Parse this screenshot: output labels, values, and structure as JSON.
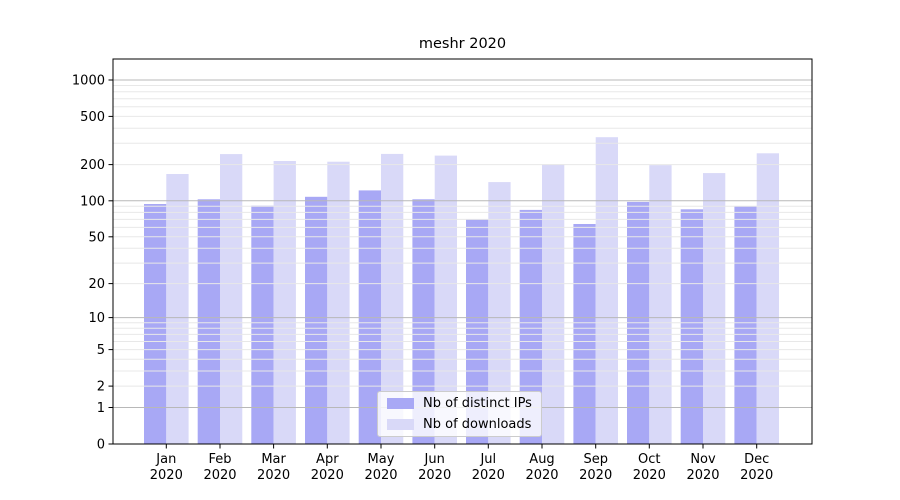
{
  "chart_data": {
    "type": "bar",
    "title": "meshr 2020",
    "categories": [
      "Jan",
      "Feb",
      "Mar",
      "Apr",
      "May",
      "Jun",
      "Jul",
      "Aug",
      "Sep",
      "Oct",
      "Nov",
      "Dec"
    ],
    "category_year": "2020",
    "series": [
      {
        "name": "Nb of distinct IPs",
        "color": "#a8a8f5",
        "values": [
          94,
          103,
          91,
          108,
          122,
          103,
          70,
          84,
          64,
          98,
          85,
          90
        ]
      },
      {
        "name": "Nb of downloads",
        "color": "#d9d9f8",
        "values": [
          167,
          244,
          214,
          211,
          245,
          237,
          143,
          201,
          337,
          198,
          170,
          248
        ]
      }
    ],
    "yscale": "log1p",
    "yticks": [
      1000,
      500,
      200,
      100,
      50,
      20,
      10,
      5,
      2,
      1,
      0
    ],
    "ylim": [
      0,
      1500
    ],
    "grid": true,
    "legend_position": "lower-center",
    "colors": {
      "grid_major": "#b8b8b8",
      "grid_minor": "#e8e8e8",
      "axis": "#000000",
      "text": "#000000"
    }
  }
}
